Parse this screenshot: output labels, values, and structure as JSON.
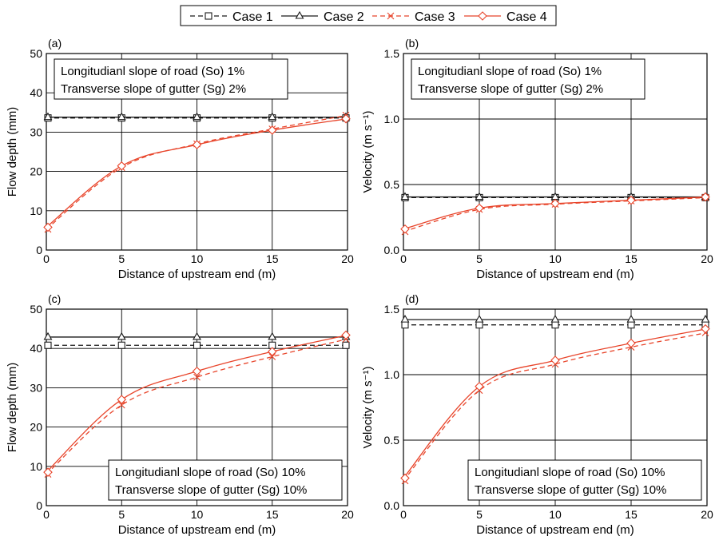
{
  "colors": {
    "black": "#1a1a1a",
    "red": "#e8442a",
    "grid": "#000000"
  },
  "legend": [
    {
      "label": "Case 1",
      "line": "dashed",
      "color": "#1a1a1a",
      "marker": "square"
    },
    {
      "label": "Case 2",
      "line": "solid",
      "color": "#1a1a1a",
      "marker": "triangle"
    },
    {
      "label": "Case 3",
      "line": "dashed",
      "color": "#e8442a",
      "marker": "x"
    },
    {
      "label": "Case 4",
      "line": "solid",
      "color": "#e8442a",
      "marker": "diamond"
    }
  ],
  "chart_data": [
    {
      "panel": "(a)",
      "type": "line",
      "xlabel": "Distance of upstream end (m)",
      "ylabel": "Flow depth (mm)",
      "xlim": [
        0,
        20
      ],
      "ylim": [
        0,
        50
      ],
      "xticks": [
        "0",
        "5",
        "10",
        "15",
        "20"
      ],
      "yticks": [
        "0",
        "10",
        "20",
        "30",
        "40",
        "50"
      ],
      "grid": true,
      "annotation_position": "top-left",
      "annotation": [
        "Longitudianl slope of road (So) 1%",
        "Transverse slope of gutter (Sg) 2%"
      ],
      "series": [
        {
          "name": "Case 1",
          "x": [
            0,
            5,
            10,
            15,
            20
          ],
          "y": [
            33.6,
            33.6,
            33.6,
            33.6,
            33.6
          ]
        },
        {
          "name": "Case 2",
          "x": [
            0,
            5,
            10,
            15,
            20
          ],
          "y": [
            33.8,
            33.8,
            33.8,
            33.8,
            33.8
          ]
        },
        {
          "name": "Case 3",
          "x": [
            0,
            5,
            10,
            15,
            20
          ],
          "y": [
            5.3,
            21.0,
            27.0,
            30.8,
            34.3
          ]
        },
        {
          "name": "Case 4",
          "x": [
            0,
            5,
            10,
            15,
            20
          ],
          "y": [
            5.8,
            21.4,
            26.8,
            30.5,
            33.4
          ]
        }
      ]
    },
    {
      "panel": "(b)",
      "type": "line",
      "xlabel": "Distance of upstream end (m)",
      "ylabel": "Velocity (m s⁻¹)",
      "xlim": [
        0,
        20
      ],
      "ylim": [
        0,
        1.5
      ],
      "xticks": [
        "0",
        "5",
        "10",
        "15",
        "20"
      ],
      "yticks": [
        "0.0",
        "0.5",
        "1.0",
        "1.5"
      ],
      "grid": true,
      "annotation_position": "top-left",
      "annotation": [
        "Longitudianl slope of road (So) 1%",
        "Transverse slope of gutter (Sg) 2%"
      ],
      "series": [
        {
          "name": "Case 1",
          "x": [
            0,
            5,
            10,
            15,
            20
          ],
          "y": [
            0.4,
            0.4,
            0.4,
            0.4,
            0.4
          ]
        },
        {
          "name": "Case 2",
          "x": [
            0,
            5,
            10,
            15,
            20
          ],
          "y": [
            0.405,
            0.405,
            0.405,
            0.405,
            0.405
          ]
        },
        {
          "name": "Case 3",
          "x": [
            0,
            5,
            10,
            15,
            20
          ],
          "y": [
            0.14,
            0.31,
            0.35,
            0.375,
            0.4
          ]
        },
        {
          "name": "Case 4",
          "x": [
            0,
            5,
            10,
            15,
            20
          ],
          "y": [
            0.16,
            0.32,
            0.355,
            0.38,
            0.405
          ]
        }
      ]
    },
    {
      "panel": "(c)",
      "type": "line",
      "xlabel": "Distance of upstream end (m)",
      "ylabel": "Flow depth (mm)",
      "xlim": [
        0,
        20
      ],
      "ylim": [
        0,
        50
      ],
      "xticks": [
        "0",
        "5",
        "10",
        "15",
        "20"
      ],
      "yticks": [
        "0",
        "10",
        "20",
        "30",
        "40",
        "50"
      ],
      "grid": true,
      "annotation_position": "bottom-right",
      "annotation": [
        "Longitudianl slope of road (So) 10%",
        "Transverse slope of gutter (Sg) 10%"
      ],
      "series": [
        {
          "name": "Case 1",
          "x": [
            0,
            5,
            10,
            15,
            20
          ],
          "y": [
            40.8,
            40.8,
            40.8,
            40.8,
            40.8
          ]
        },
        {
          "name": "Case 2",
          "x": [
            0,
            5,
            10,
            15,
            20
          ],
          "y": [
            42.9,
            42.9,
            42.9,
            42.9,
            42.9
          ]
        },
        {
          "name": "Case 3",
          "x": [
            0,
            5,
            10,
            15,
            20
          ],
          "y": [
            8.0,
            25.6,
            32.7,
            37.9,
            42.4
          ]
        },
        {
          "name": "Case 4",
          "x": [
            0,
            5,
            10,
            15,
            20
          ],
          "y": [
            8.5,
            27.0,
            34.2,
            39.2,
            43.4
          ]
        }
      ]
    },
    {
      "panel": "(d)",
      "type": "line",
      "xlabel": "Distance of upstream end (m)",
      "ylabel": "Velocity (m s⁻¹)",
      "xlim": [
        0,
        20
      ],
      "ylim": [
        0,
        1.5
      ],
      "xticks": [
        "0",
        "5",
        "10",
        "15",
        "20"
      ],
      "yticks": [
        "0.0",
        "0.5",
        "1.0",
        "1.5"
      ],
      "grid": true,
      "annotation_position": "bottom-right",
      "annotation": [
        "Longitudianl slope of road (So) 10%",
        "Transverse slope of gutter (Sg) 10%"
      ],
      "series": [
        {
          "name": "Case 1",
          "x": [
            0,
            5,
            10,
            15,
            20
          ],
          "y": [
            1.38,
            1.38,
            1.38,
            1.38,
            1.38
          ]
        },
        {
          "name": "Case 2",
          "x": [
            0,
            5,
            10,
            15,
            20
          ],
          "y": [
            1.42,
            1.42,
            1.42,
            1.42,
            1.42
          ]
        },
        {
          "name": "Case 3",
          "x": [
            0,
            5,
            10,
            15,
            20
          ],
          "y": [
            0.19,
            0.88,
            1.08,
            1.21,
            1.32
          ]
        },
        {
          "name": "Case 4",
          "x": [
            0,
            5,
            10,
            15,
            20
          ],
          "y": [
            0.21,
            0.91,
            1.11,
            1.24,
            1.35
          ]
        }
      ]
    }
  ]
}
